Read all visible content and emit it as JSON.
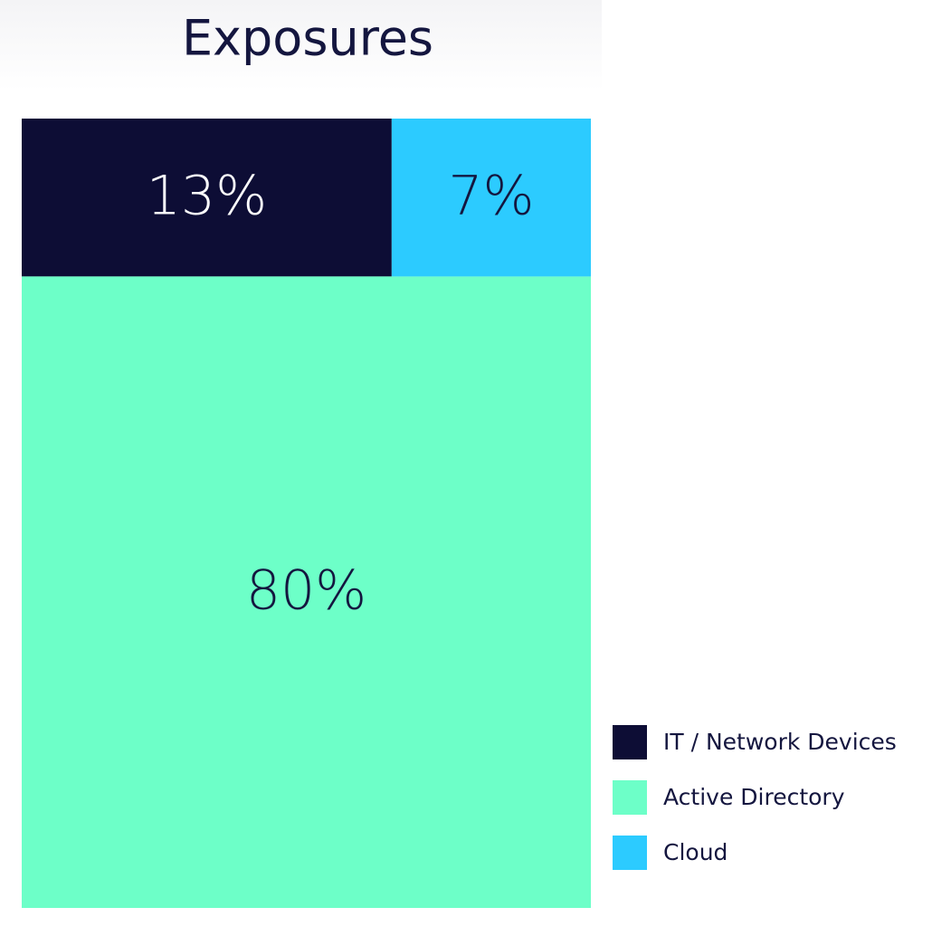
{
  "chart_data": {
    "type": "treemap",
    "title": "Exposures",
    "categories": [
      "IT / Network Devices",
      "Active Directory",
      "Cloud"
    ],
    "values": [
      13,
      80,
      7
    ],
    "value_labels": [
      "13%",
      "80%",
      "7%"
    ],
    "colors": [
      "#0d0d35",
      "#6dffc8",
      "#2ccbff"
    ]
  }
}
